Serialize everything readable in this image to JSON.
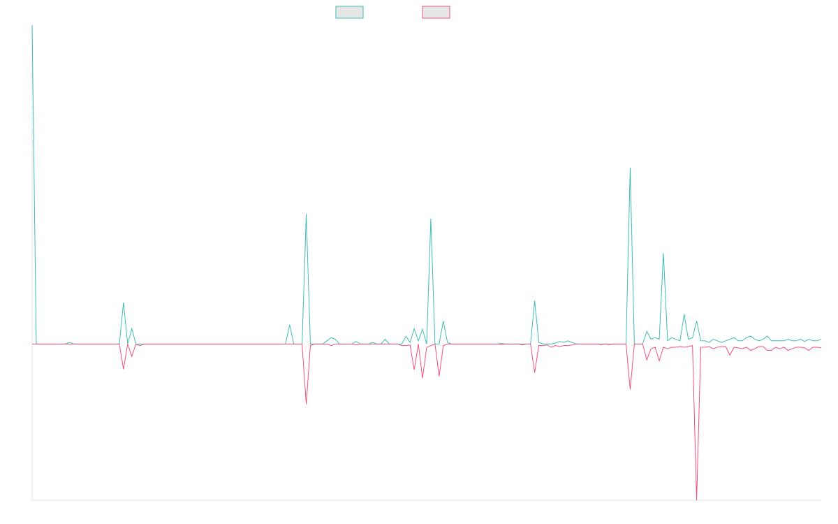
{
  "chart_data": {
    "type": "line",
    "xlim": [
      0,
      190
    ],
    "ylim": [
      -49,
      100
    ],
    "x": [
      0,
      1,
      2,
      3,
      4,
      5,
      6,
      7,
      8,
      9,
      10,
      11,
      12,
      13,
      14,
      15,
      16,
      17,
      18,
      19,
      20,
      21,
      22,
      23,
      24,
      25,
      26,
      27,
      28,
      29,
      30,
      31,
      32,
      33,
      34,
      35,
      36,
      37,
      38,
      39,
      40,
      41,
      42,
      43,
      44,
      45,
      46,
      47,
      48,
      49,
      50,
      51,
      52,
      53,
      54,
      55,
      56,
      57,
      58,
      59,
      60,
      61,
      62,
      63,
      64,
      65,
      66,
      67,
      68,
      69,
      70,
      71,
      72,
      73,
      74,
      75,
      76,
      77,
      78,
      79,
      80,
      81,
      82,
      83,
      84,
      85,
      86,
      87,
      88,
      89,
      90,
      91,
      92,
      93,
      94,
      95,
      96,
      97,
      98,
      99,
      100,
      101,
      102,
      103,
      104,
      105,
      106,
      107,
      108,
      109,
      110,
      111,
      112,
      113,
      114,
      115,
      116,
      117,
      118,
      119,
      120,
      121,
      122,
      123,
      124,
      125,
      126,
      127,
      128,
      129,
      130,
      131,
      132,
      133,
      134,
      135,
      136,
      137,
      138,
      139,
      140,
      141,
      142,
      143,
      144,
      145,
      146,
      147,
      148,
      149,
      150,
      151,
      152,
      153,
      154,
      155,
      156,
      157,
      158,
      159,
      160,
      161,
      162,
      163,
      164,
      165,
      166,
      167,
      168,
      169,
      170,
      171,
      172,
      173,
      174,
      175,
      176,
      177,
      178,
      179,
      180,
      181,
      182,
      183,
      184,
      185,
      186,
      187,
      188,
      189,
      190
    ],
    "series": [
      {
        "color": "#3dbdb4",
        "values": [
          100,
          0,
          0,
          0,
          0,
          0,
          0,
          0,
          0,
          0.5,
          0,
          0,
          0,
          0,
          0,
          0,
          0,
          0,
          0,
          0,
          0,
          0,
          13,
          0,
          4.8,
          0,
          0,
          0,
          0,
          0,
          0,
          0,
          0,
          0,
          0,
          0,
          0,
          0,
          0,
          0,
          0,
          0,
          0,
          0,
          0,
          0,
          0,
          0,
          0,
          0,
          0,
          0,
          0,
          0,
          0,
          0,
          0,
          0,
          0,
          0,
          0,
          0,
          6,
          0,
          0,
          0,
          40.8,
          0,
          0,
          0,
          0,
          1,
          2,
          1.5,
          0,
          0,
          0,
          0,
          0.8,
          0,
          0,
          0,
          0.5,
          0,
          0,
          1.5,
          0,
          0,
          0,
          0,
          2.4,
          0.5,
          4.8,
          1,
          4.6,
          0,
          39.3,
          0,
          0,
          7.2,
          0.5,
          0,
          0,
          0,
          0,
          0,
          0,
          0,
          0,
          0,
          0,
          0,
          0,
          0.2,
          0,
          0,
          0,
          0,
          0,
          0,
          0,
          13.6,
          0.5,
          0,
          0,
          0,
          0.3,
          0.8,
          0.5,
          1,
          0.5,
          0,
          0,
          0,
          0,
          0,
          0,
          0,
          0,
          0,
          0,
          0,
          0,
          0,
          55.3,
          0,
          0,
          0,
          4,
          1.5,
          2,
          1.5,
          28.5,
          1,
          2,
          1.5,
          1,
          9.4,
          1.5,
          2,
          7.2,
          1,
          1,
          0.5,
          1.5,
          1,
          0.5,
          1,
          1.5,
          2,
          1,
          1,
          2,
          2.5,
          1.5,
          1,
          1.5,
          2.5,
          1,
          1,
          1,
          1,
          1.5,
          1,
          1,
          1.5,
          0.8,
          1.5,
          1,
          1,
          1.5
        ]
      },
      {
        "color": "#f0507a",
        "values": [
          0,
          0,
          0,
          0,
          0,
          0,
          0,
          0,
          0,
          0,
          0,
          0,
          0,
          0,
          0,
          0,
          0,
          0,
          0,
          0,
          0,
          0,
          -7.9,
          0,
          -3.9,
          0,
          -0.5,
          0,
          0,
          0,
          0,
          0,
          0,
          0,
          0,
          0,
          0,
          0,
          0,
          0,
          0,
          0,
          0,
          0,
          0,
          0,
          0,
          0,
          0,
          0,
          0,
          0,
          0,
          0,
          0,
          0,
          0,
          0,
          0,
          0,
          0,
          0,
          0,
          0,
          0,
          0,
          -18.9,
          -0.5,
          0,
          0,
          0,
          0,
          -0.5,
          0,
          0,
          0,
          0,
          0,
          -0.3,
          0,
          0,
          0,
          0,
          0,
          0,
          0,
          0,
          0,
          0,
          -0.5,
          -0.5,
          -0.3,
          -8.1,
          0,
          -10.7,
          -1,
          -0.5,
          0,
          -10.1,
          -0.5,
          0,
          0,
          0,
          0,
          0,
          0,
          0,
          0,
          0,
          0,
          0,
          0,
          0,
          -0.2,
          0,
          0,
          0,
          0,
          -0.3,
          0,
          0,
          -9,
          -0.5,
          -0.5,
          -0.3,
          -1,
          -0.5,
          -0.8,
          -0.5,
          -0.5,
          -0.3,
          0,
          0,
          0,
          0,
          0,
          0,
          -0.2,
          0,
          -0.2,
          0,
          0,
          0,
          0,
          -14.3,
          0,
          0,
          0,
          -5,
          -1.5,
          -1,
          -5.3,
          -1,
          -1.5,
          -1,
          -1,
          -0.8,
          -1,
          -0.8,
          -0.5,
          -49,
          -1,
          -1,
          -0.8,
          -1.5,
          -1,
          -0.8,
          -0.8,
          -3.5,
          -1,
          -1.2,
          -1.5,
          -1,
          -2,
          -1.5,
          -0.8,
          -0.8,
          -2,
          -2,
          -1,
          -1.5,
          -1,
          -2,
          -1.5,
          -1,
          -1,
          -1.2,
          -2,
          -1,
          -1,
          -1.2
        ]
      }
    ]
  }
}
